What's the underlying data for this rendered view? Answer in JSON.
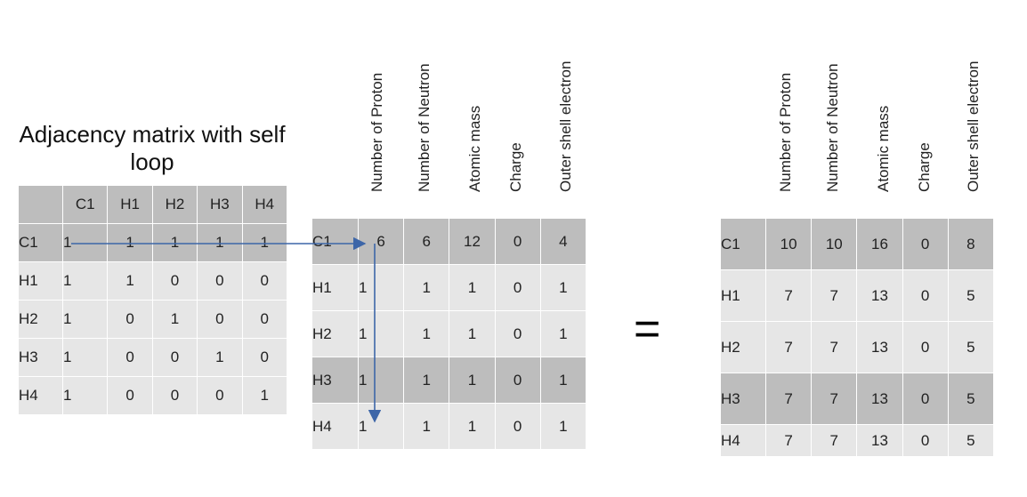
{
  "title": "Adjacency matrix with self loop",
  "adjacency": {
    "headers": [
      "",
      "C1",
      "H1",
      "H2",
      "H3",
      "H4"
    ],
    "rows": [
      {
        "label": "C1",
        "values": [
          "1",
          "1",
          "1",
          "1",
          "1"
        ]
      },
      {
        "label": "H1",
        "values": [
          "1",
          "1",
          "0",
          "0",
          "0"
        ]
      },
      {
        "label": "H2",
        "values": [
          "1",
          "0",
          "1",
          "0",
          "0"
        ]
      },
      {
        "label": "H3",
        "values": [
          "1",
          "0",
          "0",
          "1",
          "0"
        ]
      },
      {
        "label": "H4",
        "values": [
          "1",
          "0",
          "0",
          "0",
          "1"
        ]
      }
    ]
  },
  "features": {
    "headers": [
      "Number of Proton",
      "Number of Neutron",
      "Atomic mass",
      "Charge",
      "Outer shell electron"
    ],
    "rows": [
      {
        "label": "C1",
        "values": [
          "6",
          "6",
          "12",
          "0",
          "4"
        ]
      },
      {
        "label": "H1",
        "values": [
          "1",
          "1",
          "1",
          "0",
          "1"
        ]
      },
      {
        "label": "H2",
        "values": [
          "1",
          "1",
          "1",
          "0",
          "1"
        ]
      },
      {
        "label": "H3",
        "values": [
          "1",
          "1",
          "1",
          "0",
          "1"
        ]
      },
      {
        "label": "H4",
        "values": [
          "1",
          "1",
          "1",
          "0",
          "1"
        ]
      }
    ]
  },
  "equals": "=",
  "result": {
    "headers": [
      "Number of Proton",
      "Number of Neutron",
      "Atomic mass",
      "Charge",
      "Outer shell electron"
    ],
    "rows": [
      {
        "label": "C1",
        "values": [
          "10",
          "10",
          "16",
          "0",
          "8"
        ]
      },
      {
        "label": "H1",
        "values": [
          "7",
          "7",
          "13",
          "0",
          "5"
        ]
      },
      {
        "label": "H2",
        "values": [
          "7",
          "7",
          "13",
          "0",
          "5"
        ]
      },
      {
        "label": "H3",
        "values": [
          "7",
          "7",
          "13",
          "0",
          "5"
        ]
      },
      {
        "label": "H4",
        "values": [
          "7",
          "7",
          "13",
          "0",
          "5"
        ]
      }
    ]
  },
  "colors": {
    "arrow": "#3d66a8",
    "cell_dark": "#bdbdbd",
    "cell_light": "#e6e6e6"
  }
}
